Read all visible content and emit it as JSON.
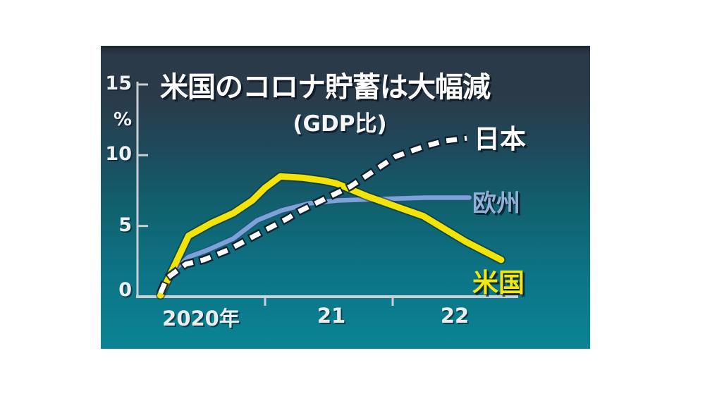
{
  "chart_data": {
    "type": "line",
    "title": "米国のコロナ貯蓄は大幅減",
    "subtitle": "(GDP比)",
    "y_axis": {
      "unit": "%",
      "tick_labels": [
        "15",
        "10",
        "5",
        "0"
      ],
      "tick_values": [
        15,
        10,
        5,
        0
      ],
      "inner_tick_values": [
        15,
        10,
        5
      ],
      "range": [
        0,
        15.2
      ],
      "axis_color": "#c9ced2"
    },
    "x_axis": {
      "tick_labels": [
        "2020年",
        "21",
        "22"
      ],
      "tick_years": [
        2021,
        2022
      ],
      "range": [
        2020,
        2023
      ],
      "axis_color": "#c9ced2"
    },
    "grid": "off",
    "legend_position": "inline-right",
    "series": [
      {
        "id": "japan",
        "name": "日本",
        "color": "#ffffff",
        "outline_color": "#101c28",
        "style": "dashed",
        "points": [
          [
            2020.18,
            0.25
          ],
          [
            2020.23,
            1.3
          ],
          [
            2020.38,
            2.3
          ],
          [
            2020.52,
            2.6
          ],
          [
            2020.71,
            3.3
          ],
          [
            2020.98,
            4.6
          ],
          [
            2021.17,
            5.5
          ],
          [
            2021.26,
            6.0
          ],
          [
            2021.67,
            7.8
          ],
          [
            2022.02,
            9.9
          ],
          [
            2022.24,
            10.6
          ],
          [
            2022.4,
            11.0
          ],
          [
            2022.58,
            11.2
          ]
        ]
      },
      {
        "id": "europe",
        "name": "欧州",
        "color": "#7ca2d8",
        "label_color": "#8fb0d8",
        "outline_color": "#2c4a78",
        "style": "solid",
        "points": [
          [
            2020.18,
            0.25
          ],
          [
            2020.3,
            2.0
          ],
          [
            2020.4,
            2.8
          ],
          [
            2020.55,
            3.3
          ],
          [
            2020.75,
            4.1
          ],
          [
            2020.94,
            5.4
          ],
          [
            2021.13,
            6.1
          ],
          [
            2021.35,
            6.6
          ],
          [
            2021.57,
            6.8
          ],
          [
            2021.9,
            6.9
          ],
          [
            2022.25,
            7.0
          ],
          [
            2022.6,
            7.0
          ]
        ]
      },
      {
        "id": "us",
        "name": "米国",
        "color": "#f2e409",
        "label_color": "#f2e70f",
        "outline_color": "#14281e",
        "style": "solid",
        "points": [
          [
            2020.18,
            0.1
          ],
          [
            2020.4,
            4.3
          ],
          [
            2020.58,
            5.2
          ],
          [
            2020.75,
            5.9
          ],
          [
            2020.9,
            6.8
          ],
          [
            2021.0,
            7.7
          ],
          [
            2021.12,
            8.5
          ],
          [
            2021.3,
            8.4
          ],
          [
            2021.46,
            8.2
          ],
          [
            2021.56,
            8.0
          ],
          [
            2021.8,
            7.1
          ],
          [
            2022.02,
            6.4
          ],
          [
            2022.24,
            5.7
          ],
          [
            2022.57,
            3.9
          ],
          [
            2022.85,
            2.6
          ]
        ]
      }
    ],
    "background": {
      "top_band": "#1f2a37",
      "top": "#2b3a49",
      "upper": "#1d4a5c",
      "mid": "#11616f",
      "lower": "#0c7587",
      "bottom": "#0a8494"
    }
  }
}
